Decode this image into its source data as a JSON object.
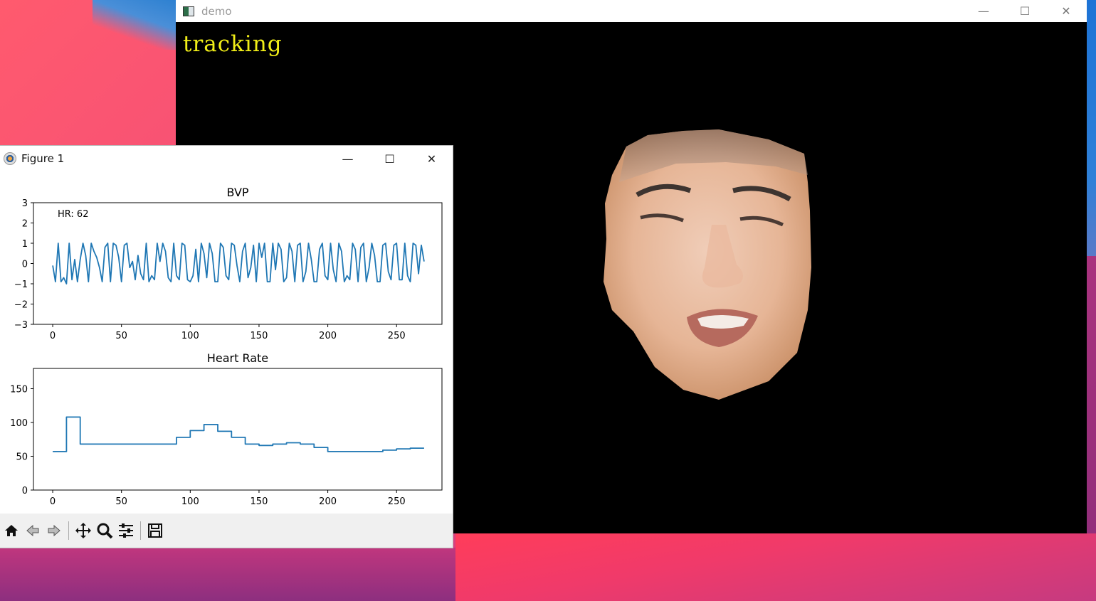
{
  "demo_window": {
    "title": "demo",
    "overlay_text": "tracking",
    "controls": {
      "minimize": "—",
      "maximize": "☐",
      "close": "✕"
    }
  },
  "figure_window": {
    "title": "Figure 1",
    "controls": {
      "minimize": "—",
      "maximize": "☐",
      "close": "✕"
    },
    "toolbar": [
      {
        "name": "home-icon"
      },
      {
        "name": "back-icon"
      },
      {
        "name": "forward-icon"
      },
      {
        "name": "pan-icon"
      },
      {
        "name": "zoom-icon"
      },
      {
        "name": "configure-icon"
      },
      {
        "name": "save-icon"
      }
    ]
  },
  "chart_data": [
    {
      "type": "line",
      "title": "BVP",
      "annotation": "HR: 62",
      "xlabel": "",
      "ylabel": "",
      "xlim": [
        -14,
        283
      ],
      "ylim": [
        -3,
        3
      ],
      "xticks": [
        0,
        50,
        100,
        150,
        200,
        250
      ],
      "yticks": [
        3,
        2,
        1,
        0,
        -1,
        -2,
        -3
      ],
      "ytick_labels": [
        "3",
        "2",
        "1",
        "0",
        "−1",
        "−2",
        "−3"
      ],
      "color": "#1f77b4",
      "series": [
        {
          "name": "BVP",
          "x": [
            0,
            2,
            4,
            6,
            8,
            10,
            12,
            14,
            16,
            18,
            20,
            22,
            24,
            26,
            28,
            30,
            32,
            34,
            36,
            38,
            40,
            42,
            44,
            46,
            48,
            50,
            52,
            54,
            56,
            58,
            60,
            62,
            64,
            66,
            68,
            70,
            72,
            74,
            76,
            78,
            80,
            82,
            84,
            86,
            88,
            90,
            92,
            94,
            96,
            98,
            100,
            102,
            104,
            106,
            108,
            110,
            112,
            114,
            116,
            118,
            120,
            122,
            124,
            126,
            128,
            130,
            132,
            134,
            136,
            138,
            140,
            142,
            144,
            146,
            148,
            150,
            152,
            154,
            156,
            158,
            160,
            162,
            164,
            166,
            168,
            170,
            172,
            174,
            176,
            178,
            180,
            182,
            184,
            186,
            188,
            190,
            192,
            194,
            196,
            198,
            200,
            202,
            204,
            206,
            208,
            210,
            212,
            214,
            216,
            218,
            220,
            222,
            224,
            226,
            228,
            230,
            232,
            234,
            236,
            238,
            240,
            242,
            244,
            246,
            248,
            250,
            252,
            254,
            256,
            258,
            260,
            262,
            264,
            266,
            268,
            270
          ],
          "values": [
            -0.1,
            -0.9,
            1.0,
            -0.9,
            -0.7,
            -1.0,
            1.0,
            -0.8,
            0.2,
            -0.9,
            0.2,
            1.0,
            0.4,
            -0.9,
            1.0,
            0.6,
            0.3,
            -0.2,
            -0.9,
            0.8,
            1.0,
            -0.9,
            1.0,
            0.9,
            0.3,
            -0.9,
            0.9,
            1.0,
            -0.2,
            0.1,
            -0.8,
            0.4,
            -0.5,
            -0.8,
            1.0,
            -0.9,
            -0.6,
            -0.8,
            1.0,
            0.1,
            1.0,
            0.6,
            -0.7,
            -0.9,
            1.0,
            -0.6,
            -0.8,
            1.0,
            0.9,
            -0.8,
            -0.9,
            -0.6,
            0.7,
            -0.9,
            1.0,
            0.5,
            -0.7,
            1.0,
            0.5,
            -0.9,
            -0.9,
            1.0,
            0.8,
            -0.6,
            -0.8,
            1.0,
            0.9,
            -0.1,
            -0.9,
            0.6,
            1.0,
            -0.7,
            -0.2,
            0.9,
            -0.9,
            1.0,
            0.3,
            1.0,
            -0.9,
            -0.9,
            1.0,
            -0.3,
            1.0,
            0.7,
            -0.9,
            -0.7,
            1.0,
            0.6,
            -0.9,
            0.9,
            1.0,
            -0.9,
            -0.4,
            1.0,
            0.2,
            -0.9,
            -0.9,
            0.7,
            1.0,
            -0.6,
            -0.8,
            1.0,
            -0.3,
            -0.9,
            1.0,
            0.6,
            -0.9,
            -0.6,
            -0.8,
            1.0,
            0.7,
            -0.9,
            0.8,
            1.0,
            -0.9,
            -0.2,
            1.0,
            0.4,
            -0.9,
            -0.9,
            0.9,
            1.0,
            -0.4,
            -0.8,
            0.9,
            1.0,
            -0.8,
            -0.8,
            1.0,
            -0.6,
            -0.9,
            1.0,
            0.9,
            -0.5,
            0.9,
            0.1
          ]
        }
      ]
    },
    {
      "type": "line",
      "title": "Heart Rate",
      "xlabel": "",
      "ylabel": "",
      "xlim": [
        -14,
        283
      ],
      "ylim": [
        0,
        180
      ],
      "xticks": [
        0,
        50,
        100,
        150,
        200,
        250
      ],
      "yticks": [
        0,
        50,
        100,
        150
      ],
      "color": "#1f77b4",
      "series": [
        {
          "name": "Heart Rate",
          "x": [
            0,
            10,
            10,
            20,
            20,
            30,
            40,
            50,
            60,
            70,
            80,
            90,
            90,
            100,
            100,
            110,
            110,
            120,
            120,
            130,
            130,
            140,
            140,
            150,
            150,
            160,
            160,
            170,
            170,
            180,
            180,
            190,
            190,
            200,
            200,
            210,
            220,
            230,
            240,
            240,
            250,
            250,
            260,
            260,
            270
          ],
          "values": [
            57,
            57,
            108,
            108,
            68,
            68,
            68,
            68,
            68,
            68,
            68,
            68,
            78,
            78,
            88,
            88,
            97,
            97,
            87,
            87,
            78,
            78,
            68,
            68,
            66,
            66,
            68,
            68,
            70,
            70,
            68,
            68,
            63,
            63,
            57,
            57,
            57,
            57,
            57,
            59,
            59,
            61,
            61,
            62,
            62
          ]
        }
      ]
    }
  ]
}
